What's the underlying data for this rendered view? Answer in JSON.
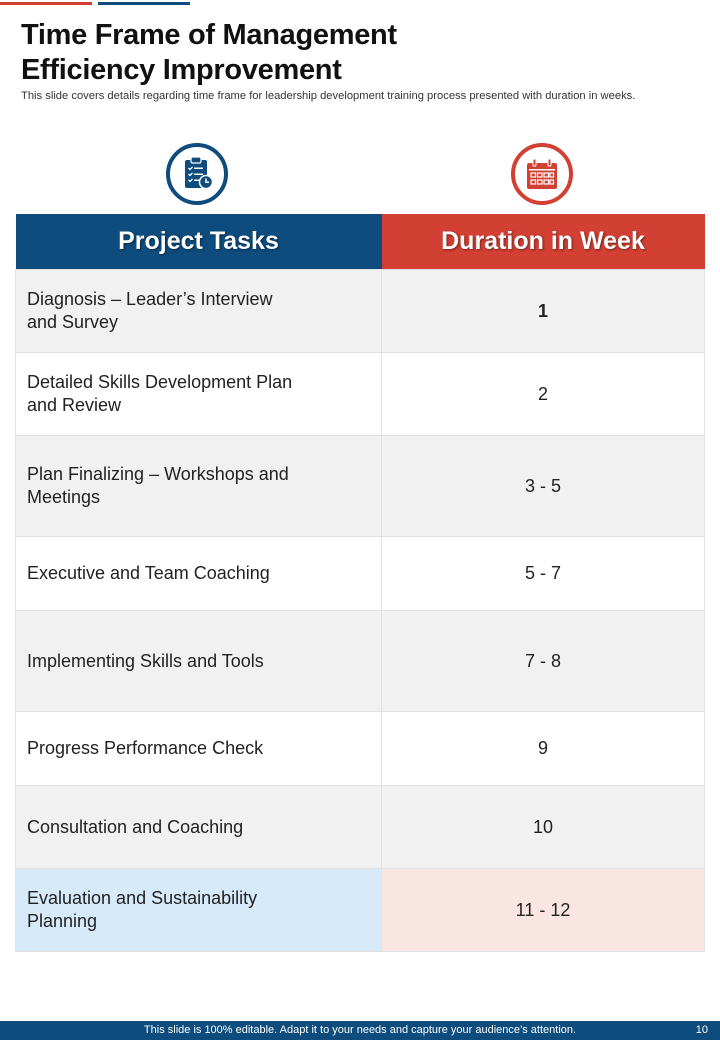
{
  "title_line1": "Time Frame of Management",
  "title_line2": "Efficiency Improvement",
  "subtitle": "This slide covers details regarding time frame for leadership development training process presented with duration in weeks.",
  "icons": {
    "left": "clipboard-icon",
    "right": "calendar-icon"
  },
  "colors": {
    "blue": "#0d4c7c",
    "red": "#d23f33",
    "row_gray": "#f1f1f1",
    "highlight_blue": "#d6eafa",
    "highlight_pink": "#f9e5e2"
  },
  "table": {
    "headers": [
      "Project Tasks",
      "Duration in Week"
    ],
    "rows": [
      {
        "task": "Diagnosis – Leader’s Interview and Survey",
        "duration": "1"
      },
      {
        "task": "Detailed Skills Development Plan and Review",
        "duration": "2"
      },
      {
        "task": "Plan Finalizing – Workshops and Meetings",
        "duration": "3 - 5"
      },
      {
        "task": "Executive and Team Coaching",
        "duration": "5 - 7"
      },
      {
        "task": "Implementing Skills and Tools",
        "duration": "7 - 8"
      },
      {
        "task": "Progress Performance Check",
        "duration": "9"
      },
      {
        "task": "Consultation and Coaching",
        "duration": "10"
      },
      {
        "task": "Evaluation and Sustainability Planning",
        "duration": "11 - 12"
      }
    ]
  },
  "footer": {
    "text": "This slide is 100% editable. Adapt it to your needs and capture your audience’s attention.",
    "page": "10"
  }
}
